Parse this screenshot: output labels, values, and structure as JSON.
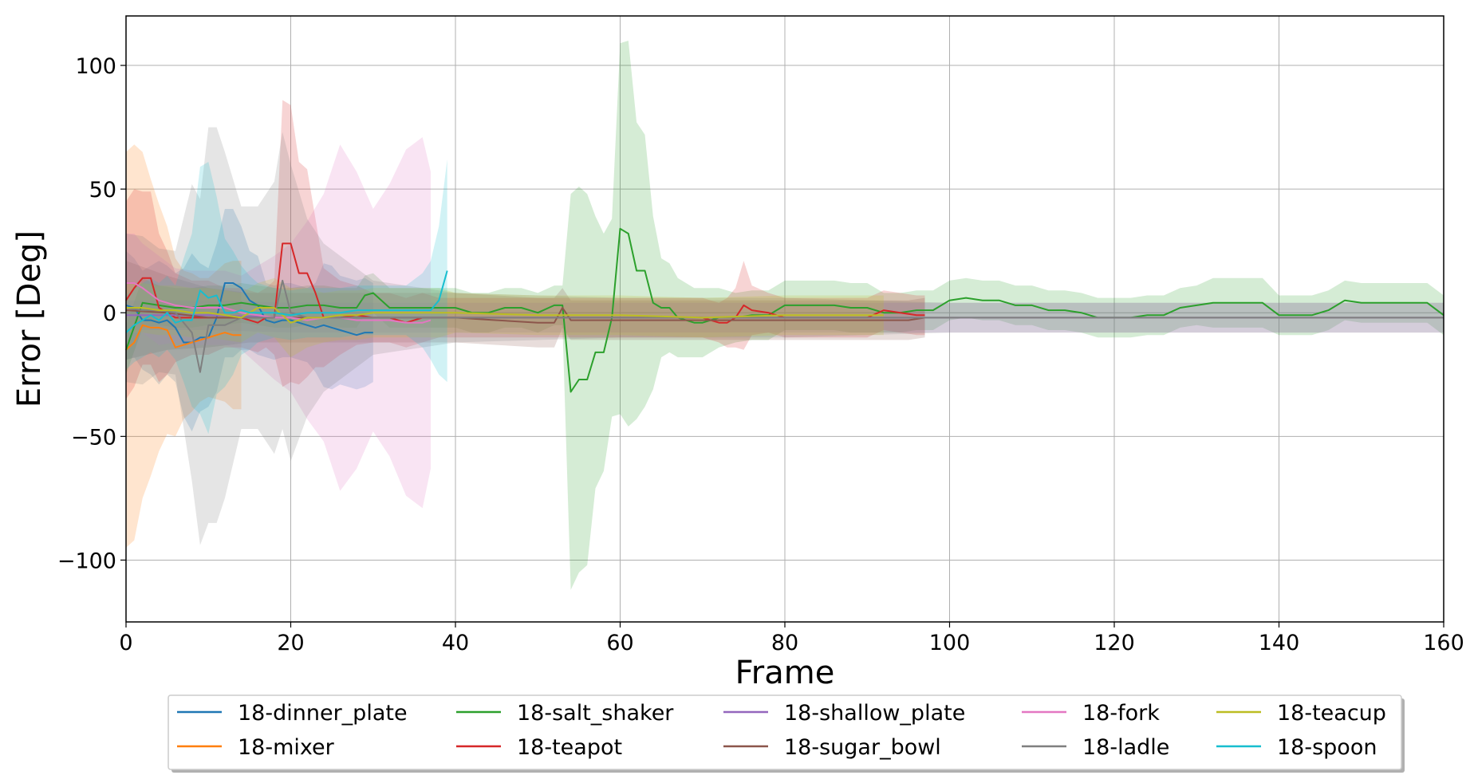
{
  "chart_data": {
    "type": "line",
    "title": "",
    "xlabel": "Frame",
    "ylabel": "Error [Deg]",
    "xlim": [
      0,
      160
    ],
    "ylim": [
      -125,
      120
    ],
    "xticks": [
      0,
      20,
      40,
      60,
      80,
      100,
      120,
      140,
      160
    ],
    "yticks": [
      -100,
      -50,
      0,
      50,
      100
    ],
    "ytick_labels": [
      "−100",
      "−50",
      "0",
      "50",
      "100"
    ],
    "grid": true,
    "legend_placement": "bottom-center, below plot, 5 columns",
    "series": [
      {
        "name": "18-dinner_plate",
        "color": "#1f77b4",
        "x": [
          0,
          1,
          2,
          3,
          4,
          5,
          6,
          7,
          8,
          9,
          10,
          11,
          12,
          13,
          14,
          15,
          16,
          17,
          18,
          19,
          20,
          21,
          22,
          23,
          24,
          25,
          26,
          27,
          28,
          29,
          30
        ],
        "y": [
          3,
          2,
          -3,
          -3,
          -4,
          -3,
          -6,
          -12,
          -12,
          -10,
          -10,
          -2,
          12,
          12,
          10,
          5,
          3,
          -3,
          -4,
          -3,
          -3,
          -4,
          -5,
          -6,
          -5,
          -6,
          -7,
          -8,
          -9,
          -8,
          -8
        ],
        "band": [
          22,
          20,
          20,
          22,
          25,
          22,
          22,
          30,
          36,
          30,
          28,
          30,
          30,
          30,
          25,
          20,
          20,
          15,
          15,
          15,
          15,
          15,
          15,
          18,
          25,
          25,
          22,
          22,
          22,
          22,
          20
        ]
      },
      {
        "name": "18-mixer",
        "color": "#ff7f0e",
        "x": [
          0,
          1,
          2,
          3,
          4,
          5,
          6,
          7,
          8,
          9,
          10,
          11,
          12,
          13,
          14
        ],
        "y": [
          -15,
          -12,
          -5,
          -6,
          -6,
          -7,
          -14,
          -13,
          -12,
          -11,
          -10,
          -9,
          -8,
          -9,
          -9
        ],
        "band": [
          80,
          80,
          70,
          60,
          50,
          42,
          36,
          30,
          28,
          25,
          24,
          26,
          28,
          30,
          30
        ]
      },
      {
        "name": "18-salt_shaker",
        "color": "#2ca02c",
        "x": [
          0,
          2,
          4,
          6,
          8,
          10,
          12,
          14,
          16,
          18,
          20,
          22,
          24,
          26,
          28,
          29,
          30,
          32,
          34,
          36,
          38,
          40,
          42,
          44,
          46,
          48,
          50,
          52,
          53,
          54,
          55,
          56,
          57,
          58,
          59,
          60,
          61,
          62,
          63,
          64,
          65,
          66,
          67,
          68,
          69,
          70,
          72,
          74,
          76,
          78,
          80,
          82,
          84,
          86,
          88,
          90,
          92,
          94,
          96,
          98,
          100,
          102,
          104,
          106,
          108,
          110,
          112,
          114,
          116,
          118,
          120,
          122,
          124,
          126,
          128,
          130,
          132,
          134,
          136,
          138,
          140,
          142,
          144,
          146,
          148,
          150,
          152,
          154,
          156,
          158,
          160
        ],
        "y": [
          -15,
          4,
          3,
          2,
          2,
          3,
          3,
          4,
          3,
          2,
          2,
          3,
          3,
          2,
          2,
          7,
          8,
          2,
          2,
          2,
          2,
          2,
          0,
          0,
          2,
          2,
          0,
          3,
          3,
          -32,
          -27,
          -27,
          -16,
          -16,
          -2,
          34,
          32,
          17,
          17,
          4,
          2,
          2,
          -2,
          -3,
          -4,
          -4,
          -2,
          -2,
          -1,
          -1,
          3,
          3,
          3,
          3,
          2,
          2,
          0,
          0,
          1,
          1,
          5,
          6,
          5,
          5,
          3,
          3,
          1,
          1,
          0,
          -2,
          -2,
          -2,
          -1,
          -1,
          2,
          3,
          4,
          4,
          4,
          4,
          -1,
          -1,
          -1,
          1,
          5,
          4,
          4,
          4,
          4,
          4,
          -1
        ],
        "band": [
          10,
          10,
          8,
          8,
          8,
          8,
          8,
          8,
          8,
          8,
          8,
          8,
          8,
          8,
          8,
          8,
          8,
          8,
          8,
          8,
          8,
          8,
          8,
          8,
          8,
          8,
          8,
          8,
          8,
          80,
          78,
          75,
          55,
          48,
          40,
          75,
          78,
          60,
          55,
          35,
          20,
          18,
          16,
          15,
          14,
          14,
          12,
          10,
          10,
          10,
          10,
          10,
          10,
          10,
          10,
          10,
          8,
          8,
          8,
          8,
          8,
          8,
          8,
          8,
          8,
          8,
          8,
          8,
          8,
          8,
          8,
          8,
          8,
          8,
          8,
          8,
          10,
          10,
          10,
          10,
          8,
          8,
          8,
          8,
          8,
          8,
          8,
          8,
          8,
          8,
          8
        ]
      },
      {
        "name": "18-teapot",
        "color": "#d62728",
        "x": [
          0,
          1,
          2,
          3,
          4,
          5,
          6,
          8,
          10,
          12,
          14,
          16,
          17,
          18,
          19,
          20,
          21,
          22,
          23,
          24,
          26,
          28,
          30,
          32,
          34,
          36,
          38,
          40,
          44,
          48,
          52,
          56,
          60,
          64,
          68,
          70,
          72,
          73,
          74,
          75,
          76,
          78,
          80,
          84,
          88,
          90,
          92,
          94,
          96,
          97
        ],
        "y": [
          5,
          10,
          14,
          14,
          2,
          0,
          -2,
          -2,
          -2,
          -2,
          -2,
          -4,
          -2,
          -2,
          28,
          28,
          16,
          16,
          8,
          -2,
          -2,
          -1,
          -2,
          -2,
          -4,
          -2,
          -2,
          -2,
          -2,
          -2,
          -2,
          -2,
          -2,
          -2,
          -2,
          -2,
          -4,
          -4,
          -2,
          3,
          1,
          0,
          -2,
          -2,
          -2,
          -2,
          1,
          0,
          -1,
          -1
        ],
        "band": [
          40,
          40,
          35,
          35,
          30,
          25,
          18,
          15,
          15,
          12,
          12,
          12,
          12,
          15,
          58,
          56,
          45,
          42,
          30,
          20,
          15,
          12,
          10,
          10,
          10,
          10,
          8,
          8,
          8,
          8,
          8,
          8,
          8,
          8,
          8,
          8,
          8,
          10,
          12,
          18,
          10,
          8,
          8,
          8,
          8,
          8,
          8,
          8,
          8,
          8
        ]
      },
      {
        "name": "18-shallow_plate",
        "color": "#9467bd",
        "x": [
          0,
          10,
          20,
          30,
          40,
          50,
          60,
          70,
          80,
          90,
          100,
          110,
          120,
          130,
          140,
          150,
          160
        ],
        "y": [
          -1,
          -1,
          -2,
          -2,
          -2,
          -2,
          -2,
          -2,
          -2,
          -2,
          -2,
          -2,
          -2,
          -2,
          -2,
          -2,
          -2
        ],
        "band": [
          6,
          6,
          6,
          6,
          6,
          6,
          6,
          6,
          6,
          6,
          6,
          6,
          6,
          6,
          6,
          6,
          6
        ]
      },
      {
        "name": "18-sugar_bowl",
        "color": "#8c564b",
        "x": [
          0,
          5,
          10,
          15,
          20,
          25,
          30,
          35,
          40,
          45,
          50,
          52,
          53,
          54,
          55,
          60,
          65,
          70,
          75,
          80,
          85,
          90,
          95,
          97
        ],
        "y": [
          1,
          0,
          -2,
          -2,
          -2,
          -2,
          -2,
          -2,
          -2,
          -3,
          -4,
          -4,
          2,
          -3,
          -3,
          -3,
          -3,
          -3,
          -3,
          -3,
          -3,
          -3,
          -3,
          -2
        ],
        "band": [
          20,
          15,
          12,
          10,
          10,
          10,
          10,
          10,
          10,
          10,
          10,
          10,
          8,
          8,
          8,
          8,
          8,
          8,
          8,
          8,
          8,
          8,
          8,
          8
        ]
      },
      {
        "name": "18-fork",
        "color": "#e377c2",
        "x": [
          0,
          1,
          2,
          4,
          6,
          8,
          10,
          12,
          14,
          16,
          18,
          20,
          22,
          24,
          26,
          28,
          30,
          32,
          34,
          36,
          37
        ],
        "y": [
          12,
          12,
          10,
          5,
          3,
          2,
          2,
          2,
          0,
          -1,
          -2,
          -2,
          -3,
          -2,
          -2,
          -3,
          -3,
          -3,
          -4,
          -4,
          -3
        ],
        "band": [
          20,
          20,
          18,
          18,
          15,
          15,
          15,
          15,
          15,
          20,
          25,
          30,
          40,
          50,
          70,
          60,
          45,
          55,
          70,
          75,
          60
        ]
      },
      {
        "name": "18-ladle",
        "color": "#7f7f7f",
        "x": [
          0,
          2,
          4,
          6,
          8,
          9,
          10,
          11,
          12,
          14,
          16,
          18,
          19,
          20,
          22,
          24,
          26,
          28,
          30,
          40,
          60,
          80,
          100,
          120,
          140,
          160
        ],
        "y": [
          2,
          1,
          1,
          0,
          -8,
          -24,
          -5,
          -5,
          -5,
          -2,
          -2,
          -2,
          13,
          0,
          -2,
          -2,
          -2,
          -2,
          -2,
          -2,
          -2,
          -2,
          -2,
          -2,
          -2,
          -2
        ],
        "band": [
          30,
          30,
          25,
          25,
          60,
          70,
          80,
          80,
          70,
          45,
          45,
          55,
          60,
          60,
          40,
          30,
          25,
          20,
          15,
          10,
          8,
          8,
          6,
          6,
          6,
          6
        ]
      },
      {
        "name": "18-teacup",
        "color": "#bcbd22",
        "x": [
          0,
          2,
          4,
          6,
          8,
          10,
          12,
          14,
          16,
          18,
          20,
          22,
          24,
          26,
          28,
          30,
          32,
          34,
          36,
          38,
          40,
          50,
          60,
          70,
          80,
          90,
          92
        ],
        "y": [
          2,
          2,
          1,
          1,
          0,
          0,
          -1,
          -2,
          2,
          2,
          -4,
          -2,
          -2,
          -1,
          -1,
          0,
          0,
          0,
          0,
          0,
          0,
          -1,
          -1,
          -2,
          -1,
          -1,
          -1
        ],
        "band": [
          10,
          10,
          10,
          10,
          10,
          10,
          10,
          10,
          10,
          12,
          14,
          12,
          10,
          10,
          10,
          10,
          10,
          10,
          10,
          10,
          8,
          8,
          8,
          8,
          8,
          8,
          8
        ]
      },
      {
        "name": "18-spoon",
        "color": "#17becf",
        "x": [
          0,
          1,
          2,
          3,
          4,
          5,
          6,
          7,
          8,
          9,
          10,
          11,
          12,
          13,
          14,
          15,
          16,
          18,
          20,
          22,
          24,
          26,
          28,
          30,
          32,
          34,
          36,
          37,
          38,
          39
        ],
        "y": [
          -8,
          -5,
          -3,
          -1,
          -3,
          0,
          -4,
          -3,
          -3,
          9,
          6,
          7,
          0,
          0,
          1,
          0,
          0,
          0,
          -1,
          0,
          0,
          0,
          1,
          1,
          1,
          1,
          1,
          1,
          5,
          17
        ],
        "band": [
          15,
          15,
          15,
          15,
          15,
          15,
          15,
          25,
          35,
          50,
          55,
          40,
          30,
          25,
          18,
          15,
          12,
          10,
          10,
          10,
          10,
          10,
          10,
          10,
          10,
          10,
          15,
          20,
          30,
          45
        ]
      }
    ]
  }
}
